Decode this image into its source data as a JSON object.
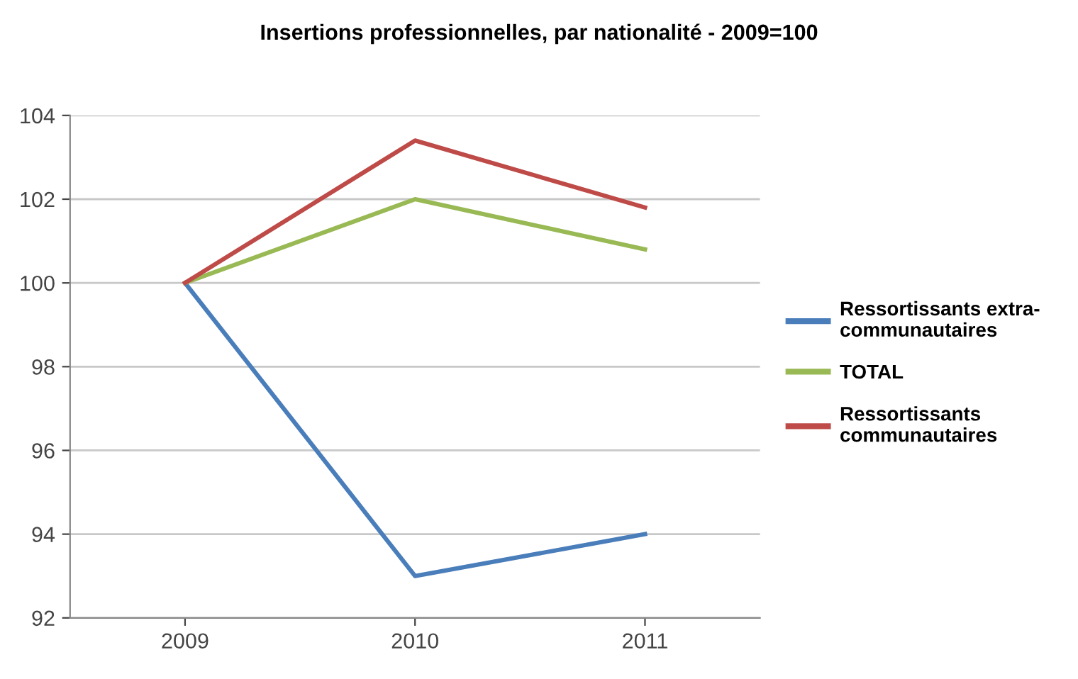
{
  "chart_data": {
    "type": "line",
    "title": "Insertions professionnelles, par nationalité - 2009=100",
    "categories": [
      "2009",
      "2010",
      "2011"
    ],
    "series": [
      {
        "name": "Ressortissants extra-\ncommunautaires",
        "color": "#4a7ebb",
        "values": [
          100,
          93.0,
          94.0
        ]
      },
      {
        "name": "TOTAL",
        "color": "#98b954",
        "values": [
          100,
          102.0,
          100.8
        ]
      },
      {
        "name": "Ressortissants\ncommunautaires",
        "color": "#be4b48",
        "values": [
          100,
          103.4,
          101.8
        ]
      }
    ],
    "ylim": [
      92,
      104
    ],
    "yticks": [
      92,
      94,
      96,
      98,
      100,
      102,
      104
    ],
    "grid": "y",
    "legend": "right",
    "marker": "none",
    "line_style": "solid"
  }
}
